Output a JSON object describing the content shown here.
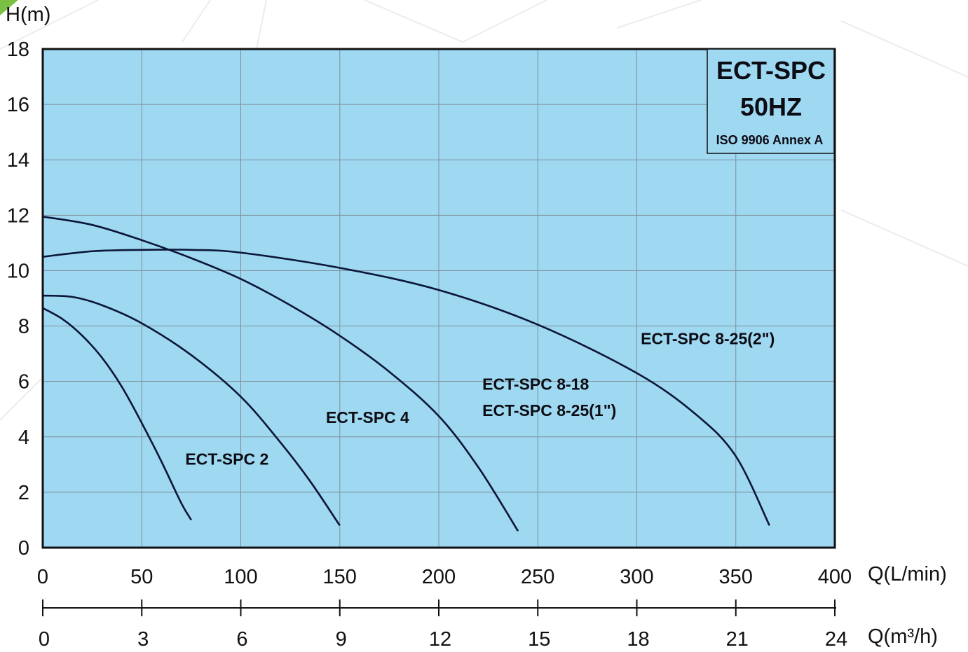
{
  "chart_data": {
    "type": "line",
    "xlabel": "Q(L/min)",
    "x2label": "Q(m³/h)",
    "ylabel": "H(m)",
    "xlim": [
      0,
      400
    ],
    "ylim": [
      0,
      18
    ],
    "x_ticks": [
      "0",
      "50",
      "100",
      "150",
      "200",
      "250",
      "300",
      "350",
      "400"
    ],
    "x2_ticks": [
      "0",
      "3",
      "6",
      "9",
      "12",
      "15",
      "18",
      "21",
      "24"
    ],
    "y_ticks": [
      "0",
      "2",
      "4",
      "6",
      "8",
      "10",
      "12",
      "14",
      "16",
      "18"
    ],
    "grid": true,
    "background_color": "#9fd8f1",
    "line_color": "#0b1638",
    "legend_box": {
      "line1": "ECT-SPC",
      "line2": "50HZ",
      "line3": "ISO 9906 Annex A"
    },
    "series": [
      {
        "name": "ECT-SPC 2",
        "x": [
          0,
          10,
          20,
          30,
          40,
          50,
          60,
          70,
          75
        ],
        "y": [
          8.65,
          8.25,
          7.65,
          6.85,
          5.8,
          4.5,
          3.1,
          1.6,
          1.0
        ]
      },
      {
        "name": "ECT-SPC 4",
        "x": [
          0,
          15,
          30,
          50,
          75,
          100,
          120,
          135,
          150
        ],
        "y": [
          9.1,
          9.05,
          8.75,
          8.1,
          6.95,
          5.45,
          3.8,
          2.4,
          0.8
        ]
      },
      {
        "name": "ECT-SPC 8-18",
        "name2": "ECT-SPC 8-25(1\")",
        "x": [
          0,
          25,
          50,
          75,
          100,
          125,
          150,
          175,
          200,
          220,
          240
        ],
        "y": [
          11.95,
          11.65,
          11.1,
          10.45,
          9.7,
          8.75,
          7.65,
          6.35,
          4.75,
          2.9,
          0.6
        ]
      },
      {
        "name": "ECT-SPC 8-25(2\")",
        "x": [
          0,
          25,
          50,
          75,
          100,
          150,
          200,
          250,
          300,
          330,
          350,
          367
        ],
        "y": [
          10.5,
          10.7,
          10.75,
          10.75,
          10.65,
          10.1,
          9.3,
          8.05,
          6.3,
          4.8,
          3.3,
          0.8
        ]
      }
    ]
  }
}
